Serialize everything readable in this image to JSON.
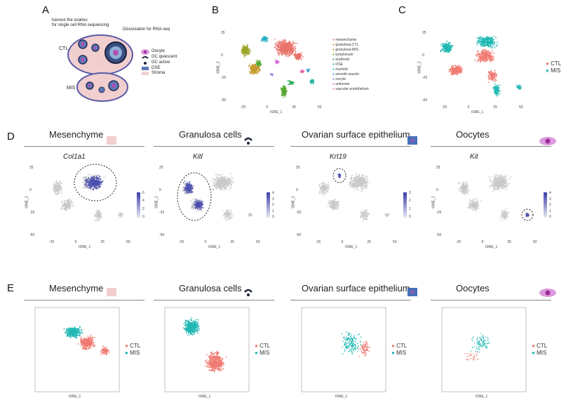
{
  "panels": {
    "A": {
      "label": "A",
      "harvest": "harvest the ovaries",
      "harvest2": "for single cell RNA sequencing",
      "dissociation": "Dissociation for RNA-seq",
      "ctl": "CTL",
      "mis": "MIS",
      "legend": [
        "Oocyte",
        "GC quiescent",
        "GC active",
        "OSE",
        "Stroma"
      ]
    },
    "B": {
      "label": "B",
      "xlabel": "tSNE_1",
      "ylabel": "tSNE_2",
      "legend": [
        {
          "name": "mesenchyme",
          "color": "#e8736c"
        },
        {
          "name": "granulosa-CTL",
          "color": "#c79a2e"
        },
        {
          "name": "granulosa-MIS",
          "color": "#9aa52a"
        },
        {
          "name": "lymphocyte",
          "color": "#55a832"
        },
        {
          "name": "erythroid",
          "color": "#33ad5e"
        },
        {
          "name": "OSE",
          "color": "#2eb39b"
        },
        {
          "name": "myeloid",
          "color": "#27aec4"
        },
        {
          "name": "smooth muscle",
          "color": "#3a9be0"
        },
        {
          "name": "oocyte",
          "color": "#8a7ee8"
        },
        {
          "name": "unknown",
          "color": "#d66fd8"
        },
        {
          "name": "vascular endothelium",
          "color": "#e769a8"
        }
      ]
    },
    "C": {
      "label": "C",
      "xlabel": "tSNE_1",
      "ylabel": "tSNE_2",
      "legend": [
        {
          "name": "CTL",
          "color": "#f07b72"
        },
        {
          "name": "MIS",
          "color": "#20b8b4"
        }
      ]
    },
    "D": {
      "label": "D"
    },
    "E": {
      "label": "E"
    }
  },
  "ticks": {
    "x": [
      "-25",
      "0",
      "25",
      "50"
    ],
    "y": [
      "25",
      "0",
      "-25",
      "-50"
    ]
  },
  "cell_types": [
    {
      "title": "Mesenchyme",
      "gene": "Col1a1",
      "scale": [
        "6",
        "4",
        "2",
        "0"
      ]
    },
    {
      "title": "Granulosa cells",
      "gene": "Kitl",
      "scale": [
        "4",
        "3",
        "2",
        "1",
        "0"
      ]
    },
    {
      "title": "Ovarian surface epithelium",
      "gene": "Krt19",
      "scale": [
        "3",
        "2",
        "1",
        "0"
      ]
    },
    {
      "title": "Oocytes",
      "gene": "Kit",
      "scale": [
        "4",
        "3",
        "2",
        "1",
        "0"
      ]
    }
  ],
  "e_legend": [
    {
      "name": "CTL",
      "color": "#f07b72"
    },
    {
      "name": "MIS",
      "color": "#20b8b4"
    }
  ],
  "axis": {
    "x": "tSNE_1",
    "y": "tSNE_2"
  },
  "colors": {
    "grey": "#c8c8c8",
    "blue": "#4b4fb0",
    "ctl": "#f07b72",
    "mis": "#20b8b4"
  }
}
